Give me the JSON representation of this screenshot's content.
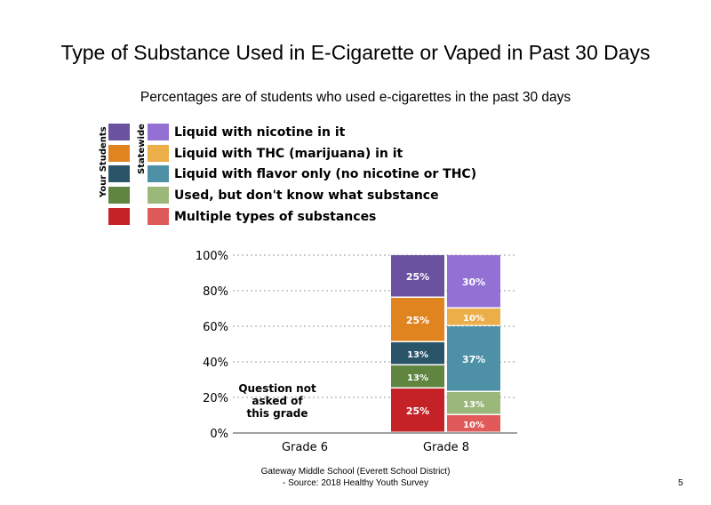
{
  "chart_data": {
    "type": "bar",
    "title": "Type of Substance Used in E-Cigarette or Vaped in Past 30 Days",
    "subtitle": "Percentages are of students who used e-cigarettes in the past 30 days",
    "categories": [
      "Grade 6",
      "Grade 8"
    ],
    "ylim": [
      0,
      100
    ],
    "y_ticks": [
      "0%",
      "20%",
      "40%",
      "60%",
      "80%",
      "100%"
    ],
    "grid": true,
    "stacked": true,
    "group_labels": [
      "Your Students",
      "Statewide"
    ],
    "series": [
      {
        "name": "Multiple types of substances",
        "your_color": "#c42227",
        "state_color": "#e05a5a",
        "your_students": [
          null,
          25
        ],
        "statewide": [
          null,
          10
        ]
      },
      {
        "name": "Used, but don't know what substance",
        "your_color": "#5f8540",
        "state_color": "#9bb77a",
        "your_students": [
          null,
          13
        ],
        "statewide": [
          null,
          13
        ]
      },
      {
        "name": "Liquid with flavor only (no nicotine or THC)",
        "your_color": "#2a5468",
        "state_color": "#4e91a6",
        "your_students": [
          null,
          13
        ],
        "statewide": [
          null,
          37
        ]
      },
      {
        "name": "Liquid with THC (marijuana) in it",
        "your_color": "#e08420",
        "state_color": "#ecae48",
        "your_students": [
          null,
          25
        ],
        "statewide": [
          null,
          10
        ]
      },
      {
        "name": "Liquid with nicotine in it",
        "your_color": "#6b52a0",
        "state_color": "#9370d4",
        "your_students": [
          null,
          25
        ],
        "statewide": [
          null,
          30
        ]
      }
    ],
    "data_labels": {
      "your_students_grade8": [
        "25%",
        "13%",
        "13%",
        "25%",
        "25%"
      ],
      "statewide_grade8": [
        "10%",
        "13%",
        "37%",
        "10%",
        "30%"
      ]
    },
    "annotation": "Question not asked of this grade",
    "annotation_lines": [
      "Question not",
      "asked of",
      "this grade"
    ]
  },
  "legend": {
    "your_students_label": "Your Students",
    "statewide_label": "Statewide",
    "items": [
      {
        "label": "Liquid with nicotine in it",
        "your_color": "#6b52a0",
        "state_color": "#9370d4"
      },
      {
        "label": "Liquid with THC (marijuana) in it",
        "your_color": "#e08420",
        "state_color": "#ecae48"
      },
      {
        "label": "Liquid with flavor only (no nicotine or THC)",
        "your_color": "#2a5468",
        "state_color": "#4e91a6"
      },
      {
        "label": "Used, but don't know what substance",
        "your_color": "#5f8540",
        "state_color": "#9bb77a"
      },
      {
        "label": "Multiple types of substances",
        "your_color": "#c42227",
        "state_color": "#e05a5a"
      }
    ]
  },
  "footer": {
    "line1": "Gateway Middle School (Everett School District)",
    "line2": "- Source: 2018 Healthy Youth Survey"
  },
  "page_number": "5"
}
